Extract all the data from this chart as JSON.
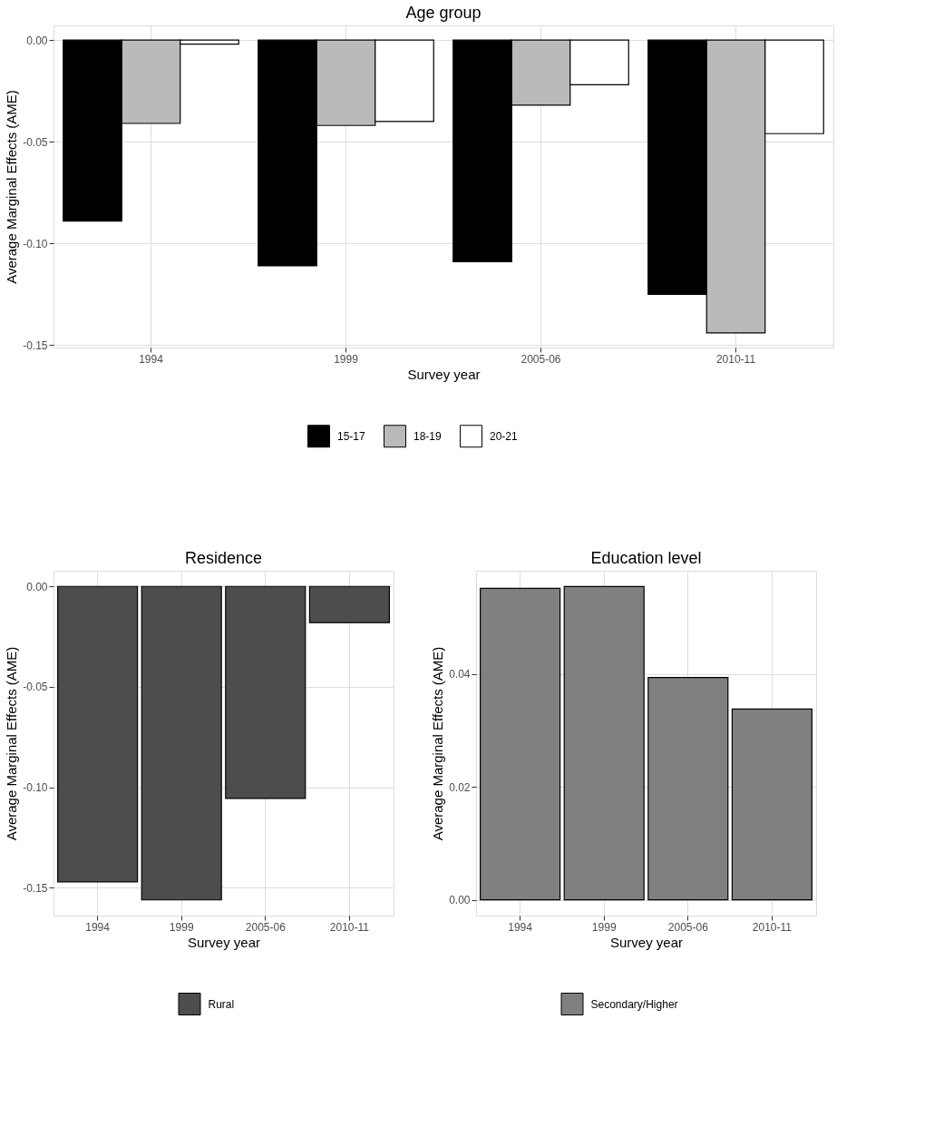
{
  "chart_data": [
    {
      "type": "bar",
      "title": "Age group",
      "xlabel": "Survey year",
      "ylabel": "Average Marginal Effects (AME)",
      "categories": [
        "1994",
        "1999",
        "2005-06",
        "2010-11"
      ],
      "series": [
        {
          "name": "15-17",
          "color": "#000000",
          "values": [
            -0.089,
            -0.111,
            -0.109,
            -0.125
          ]
        },
        {
          "name": "18-19",
          "color": "#bababa",
          "values": [
            -0.041,
            -0.042,
            -0.032,
            -0.144
          ]
        },
        {
          "name": "20-21",
          "color": "#ffffff",
          "values": [
            -0.002,
            -0.04,
            -0.022,
            -0.046
          ]
        }
      ],
      "ylim": [
        -0.1512,
        0.0072
      ],
      "yticks": [
        {
          "value": -0.15,
          "label": "-0.15"
        },
        {
          "value": -0.1,
          "label": "-0.10"
        },
        -0.05,
        {
          "value": 0,
          "label": "0.00"
        }
      ],
      "grid": true,
      "legend": "bottom"
    },
    {
      "type": "bar",
      "title": "Residence",
      "xlabel": "Survey year",
      "ylabel": "Average Marginal Effects (AME)",
      "categories": [
        "1994",
        "1999",
        "2005-06",
        "2010-11"
      ],
      "series": [
        {
          "name": "Rural",
          "color": "#4d4d4d",
          "values": [
            -0.147,
            -0.156,
            -0.1055,
            -0.018
          ]
        }
      ],
      "ylim": [
        -0.1638,
        0.0078
      ],
      "yticks": [
        {
          "value": -0.15,
          "label": "-0.15"
        },
        {
          "value": -0.1,
          "label": "-0.10"
        },
        -0.05,
        {
          "value": 0,
          "label": "0.00"
        }
      ],
      "grid": true,
      "legend": "bottom"
    },
    {
      "type": "bar",
      "title": "Education level",
      "xlabel": "Survey year",
      "ylabel": "Average Marginal Effects (AME)",
      "categories": [
        "1994",
        "1999",
        "2005-06",
        "2010-11"
      ],
      "series": [
        {
          "name": "Secondary/Higher",
          "color": "#808080",
          "values": [
            0.0552,
            0.0555,
            0.0394,
            0.0338
          ]
        }
      ],
      "ylim": [
        -0.0028,
        0.0583
      ],
      "yticks": [
        {
          "value": 0,
          "label": "0.00"
        },
        0.02,
        0.04
      ],
      "grid": true,
      "legend": "bottom"
    }
  ]
}
